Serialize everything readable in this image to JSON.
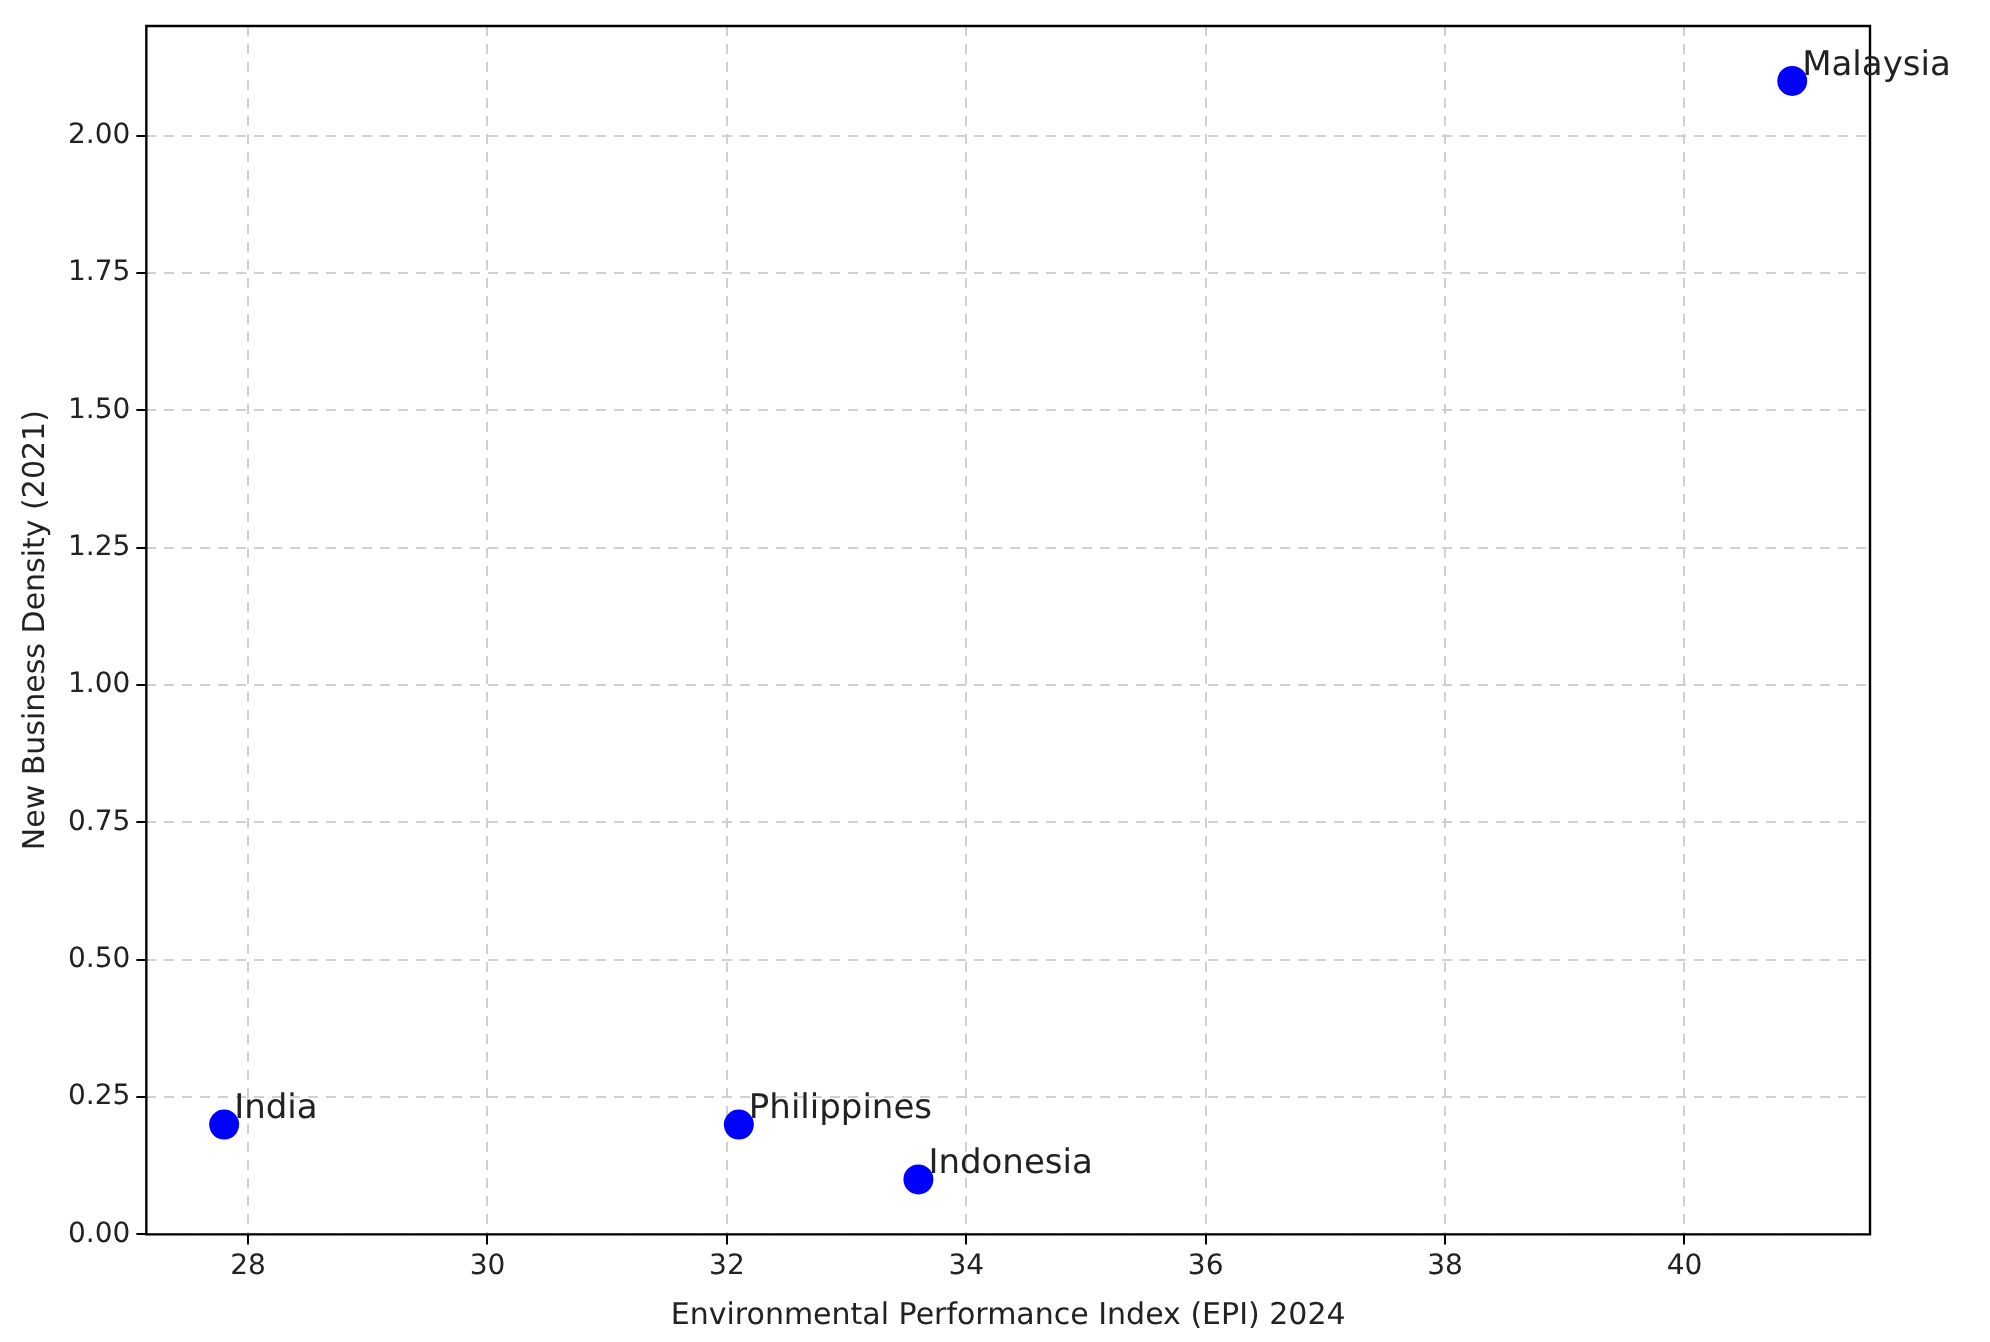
{
  "chart_data": {
    "type": "scatter",
    "xlabel": "Environmental Performance Index (EPI) 2024",
    "ylabel": "New Business Density (2021)",
    "x": [
      27.8,
      32.1,
      33.6,
      40.9
    ],
    "series": [
      {
        "color": "#0000ff",
        "values": [
          0.2,
          0.2,
          0.1,
          2.1
        ]
      }
    ],
    "annotations": [
      {
        "text": "India",
        "x": 27.8,
        "y": 0.2
      },
      {
        "text": "Philippines",
        "x": 32.1,
        "y": 0.2
      },
      {
        "text": "Indonesia",
        "x": 33.6,
        "y": 0.1
      },
      {
        "text": "Malaysia",
        "x": 40.9,
        "y": 2.1
      }
    ],
    "xlim": [
      27.15,
      41.55
    ],
    "ylim": [
      0,
      2.2
    ],
    "xticks": [
      28,
      30,
      32,
      34,
      36,
      38,
      40
    ],
    "yticks": [
      {
        "value": 0,
        "label": "0.00"
      },
      {
        "value": 0.25,
        "label": "0.25"
      },
      {
        "value": 0.5,
        "label": "0.50"
      },
      {
        "value": 0.75,
        "label": "0.75"
      },
      {
        "value": 1,
        "label": "1.00"
      },
      {
        "value": 1.25,
        "label": "1.25"
      },
      {
        "value": 1.5,
        "label": "1.50"
      },
      {
        "value": 1.75,
        "label": "1.75"
      },
      {
        "value": 2,
        "label": "2.00"
      }
    ],
    "grid": true,
    "marker": "circle"
  }
}
